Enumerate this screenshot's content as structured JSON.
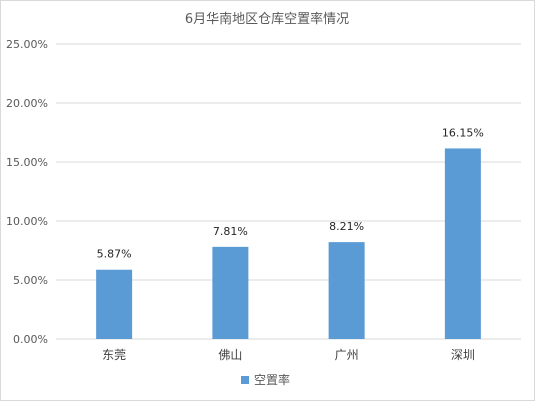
{
  "chart_data": {
    "type": "bar",
    "title": "6月华南地区仓库空置率情况",
    "categories": [
      "东莞",
      "佛山",
      "广州",
      "深圳"
    ],
    "series": [
      {
        "name": "空置率",
        "values": [
          5.87,
          7.81,
          8.21,
          16.15
        ],
        "color": "#5b9bd5"
      }
    ],
    "data_labels": [
      "5.87%",
      "7.81%",
      "8.21%",
      "16.15%"
    ],
    "y_ticks": [
      0,
      5,
      10,
      15,
      20,
      25
    ],
    "y_tick_labels": [
      "0.00%",
      "5.00%",
      "10.00%",
      "15.00%",
      "20.00%",
      "25.00%"
    ],
    "ylim": [
      0,
      25
    ],
    "grid": true,
    "legend_position": "bottom",
    "xlabel": "",
    "ylabel": ""
  }
}
